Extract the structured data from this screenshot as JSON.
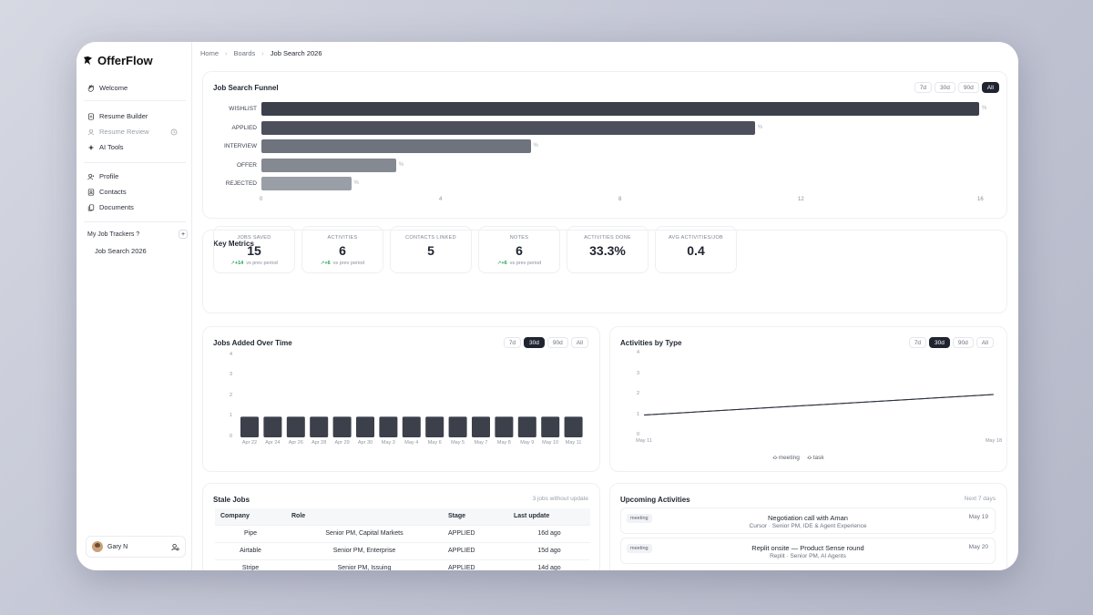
{
  "app": {
    "name": "OfferFlow"
  },
  "sidebar": {
    "items": [
      {
        "label": "Welcome",
        "icon": "hand-wave-icon",
        "muted": false
      },
      {
        "label": "Resume Builder",
        "icon": "document-icon",
        "muted": false
      },
      {
        "label": "Resume Review",
        "icon": "user-review-icon",
        "muted": true
      },
      {
        "label": "AI Tools",
        "icon": "sparkle-icon",
        "muted": false
      },
      {
        "label": "Profile",
        "icon": "user-icon",
        "muted": false
      },
      {
        "label": "Contacts",
        "icon": "contacts-icon",
        "muted": false
      },
      {
        "label": "Documents",
        "icon": "files-icon",
        "muted": false
      }
    ],
    "section_label": "My Job Trackers ?",
    "section_add": "+",
    "trackers": [
      "Job Search 2026"
    ],
    "user_name": "Gary N"
  },
  "breadcrumb": [
    "Home",
    "Boards",
    "Job Search 2026"
  ],
  "funnel": {
    "title": "Job Search Funnel",
    "ranges": [
      "7d",
      "30d",
      "90d",
      "All"
    ],
    "active_range": "All",
    "chart_data": {
      "type": "bar",
      "orientation": "horizontal",
      "categories": [
        "WISHLIST",
        "APPLIED",
        "INTERVIEW",
        "OFFER",
        "REJECTED"
      ],
      "values": [
        16,
        11,
        6,
        3,
        2
      ],
      "pct_labels": [
        "%",
        "%",
        "%",
        "%",
        "%"
      ],
      "xticks": [
        "0",
        "4",
        "8",
        "12",
        "16"
      ],
      "xlim": [
        0,
        16
      ]
    },
    "colors": [
      "#3b404b",
      "#4b505c",
      "#6f737d",
      "#858992",
      "#9a9ea6"
    ]
  },
  "metrics": {
    "title": "Key Metrics",
    "items": [
      {
        "label": "JOBS SAVED",
        "value": "15",
        "delta": "+14",
        "delta_text": "vs prev period"
      },
      {
        "label": "ACTIVITIES",
        "value": "6",
        "delta": "+6",
        "delta_text": "vs prev period"
      },
      {
        "label": "CONTACTS LINKED",
        "value": "5",
        "delta": "",
        "delta_text": ""
      },
      {
        "label": "NOTES",
        "value": "6",
        "delta": "+6",
        "delta_text": "vs prev period"
      },
      {
        "label": "ACTIVITIES DONE",
        "value": "33.3%",
        "delta": "",
        "delta_text": ""
      },
      {
        "label": "AVG ACTIVITIES/JOB",
        "value": "0.4",
        "delta": "",
        "delta_text": ""
      }
    ]
  },
  "jobs_over_time": {
    "title": "Jobs Added Over Time",
    "ranges": [
      "7d",
      "30d",
      "90d",
      "All"
    ],
    "active_range": "30d",
    "chart_data": {
      "type": "bar",
      "categories": [
        "Apr 22",
        "Apr 24",
        "Apr 26",
        "Apr 28",
        "Apr 29",
        "Apr 30",
        "May 3",
        "May 4",
        "May 6",
        "May 5",
        "May 7",
        "May 8",
        "May 9",
        "May 10",
        "May 11"
      ],
      "values": [
        1,
        1,
        1,
        1,
        1,
        1,
        1,
        1,
        1,
        1,
        1,
        1,
        1,
        1,
        1
      ],
      "yticks": [
        "0",
        "1",
        "2",
        "3",
        "4"
      ],
      "ylim": [
        0,
        4
      ]
    }
  },
  "activities_by_type": {
    "title": "Activities by Type",
    "ranges": [
      "7d",
      "30d",
      "90d",
      "All"
    ],
    "active_range": "30d",
    "chart_data": {
      "type": "line",
      "x": [
        "May 11",
        "May 18"
      ],
      "series": [
        {
          "name": "meeting",
          "values": [
            1,
            2
          ]
        },
        {
          "name": "task",
          "values": [
            1,
            2
          ]
        }
      ],
      "yticks": [
        "0",
        "1",
        "2",
        "3",
        "4"
      ],
      "ylim": [
        0,
        4
      ]
    },
    "line_color": "#2a2f3a"
  },
  "stale_jobs": {
    "title": "Stale Jobs",
    "subtitle": "3 jobs without update",
    "columns": [
      "Company",
      "Role",
      "Stage",
      "Last update"
    ],
    "rows": [
      [
        "Pipe",
        "Senior PM, Capital Markets",
        "APPLIED",
        "16d ago"
      ],
      [
        "Airtable",
        "Senior PM, Enterprise",
        "APPLIED",
        "15d ago"
      ],
      [
        "Stripe",
        "Senior PM, Issuing",
        "APPLIED",
        "14d ago"
      ]
    ]
  },
  "upcoming": {
    "title": "Upcoming Activities",
    "subtitle": "Next 7 days",
    "items": [
      {
        "type": "meeting",
        "title": "Negotiation call with Aman",
        "detail": "Cursor · Senior PM, IDE & Agent Experience",
        "date": "May 19"
      },
      {
        "type": "meeting",
        "title": "Replit onsite — Product Sense round",
        "detail": "Replit · Senior PM, AI Agents",
        "date": "May 20"
      }
    ]
  }
}
